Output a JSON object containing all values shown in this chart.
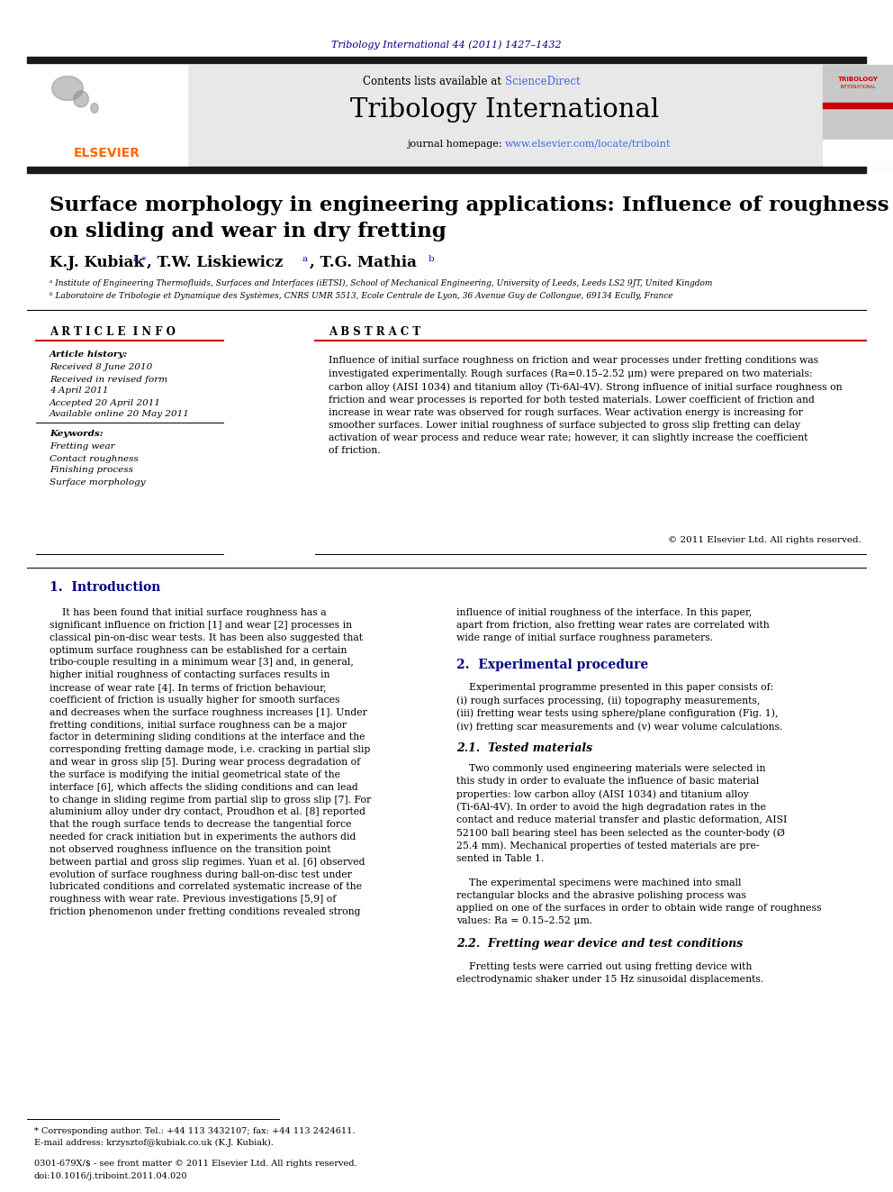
{
  "journal_ref": "Tribology International 44 (2011) 1427–1432",
  "contents_line": "Contents lists available at ScienceDirect",
  "journal_name": "Tribology International",
  "journal_homepage": "journal homepage: www.elsevier.com/locate/triboint",
  "paper_title_line1": "Surface morphology in engineering applications: Influence of roughness",
  "paper_title_line2": "on sliding and wear in dry fretting",
  "affil_a": "ᵃ Institute of Engineering Thermofluids, Surfaces and Interfaces (iETSI), School of Mechanical Engineering, University of Leeds, Leeds LS2 9JT, United Kingdom",
  "affil_b": "ᵇ Laboratoire de Tribologie et Dynamique des Systèmes, CNRS UMR 5513, Ecole Centrale de Lyon, 36 Avenue Guy de Collongue, 69134 Ecully, France",
  "article_info_header": "A R T I C L E  I N F O",
  "abstract_header": "A B S T R A C T",
  "article_history_label": "Article history:",
  "received": "Received 8 June 2010",
  "received_revised": "Received in revised form",
  "received_revised_date": "4 April 2011",
  "accepted": "Accepted 20 April 2011",
  "available": "Available online 20 May 2011",
  "keywords_label": "Keywords:",
  "keyword1": "Fretting wear",
  "keyword2": "Contact roughness",
  "keyword3": "Finishing process",
  "keyword4": "Surface morphology",
  "abstract_text": "Influence of initial surface roughness on friction and wear processes under fretting conditions was\ninvestigated experimentally. Rough surfaces (Ra=0.15–2.52 μm) were prepared on two materials:\ncarbon alloy (AISI 1034) and titanium alloy (Ti-6Al-4V). Strong influence of initial surface roughness on\nfriction and wear processes is reported for both tested materials. Lower coefficient of friction and\nincrease in wear rate was observed for rough surfaces. Wear activation energy is increasing for\nsmoother surfaces. Lower initial roughness of surface subjected to gross slip fretting can delay\nactivation of wear process and reduce wear rate; however, it can slightly increase the coefficient\nof friction.",
  "copyright": "© 2011 Elsevier Ltd. All rights reserved.",
  "footnote_star": "* Corresponding author. Tel.: +44 113 3432107; fax: +44 113 2424611.",
  "footnote_email": "E-mail address: krzysztof@kubiak.co.uk (K.J. Kubiak).",
  "footer_line1": "0301-679X/$ - see front matter © 2011 Elsevier Ltd. All rights reserved.",
  "footer_line2": "doi:10.1016/j.triboint.2011.04.020",
  "bg_color": "#ffffff",
  "header_bg": "#e8e8e8",
  "black_bar_color": "#1a1a1a",
  "journal_ref_color": "#000080",
  "link_color": "#0000cd",
  "header_link_color": "#4169e1",
  "section_header_color": "#000080",
  "body_text_color": "#000000",
  "elsevier_orange": "#FF6600",
  "red_line_color": "#cc0000"
}
